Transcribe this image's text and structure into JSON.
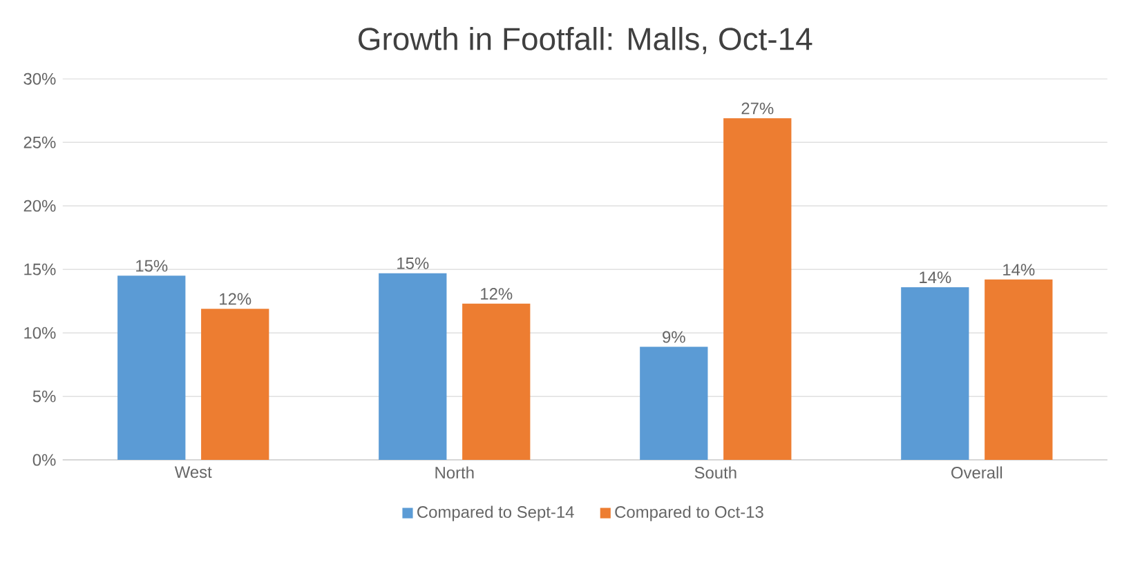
{
  "chart_data": {
    "type": "bar",
    "title": "Growth in Footfall: Malls, Oct-14",
    "categories": [
      "West",
      "North",
      "South",
      "Overall"
    ],
    "series": [
      {
        "name": "Compared to Sept-14",
        "color": "#5b9bd5",
        "values": [
          14.5,
          14.7,
          8.9,
          13.6
        ],
        "value_labels": [
          "15%",
          "15%",
          "9%",
          "14%"
        ]
      },
      {
        "name": "Compared to Oct-13",
        "color": "#ed7d31",
        "values": [
          11.9,
          12.3,
          26.9,
          14.2
        ],
        "value_labels": [
          "12%",
          "12%",
          "27%",
          "14%"
        ]
      }
    ],
    "ylim": [
      0,
      30
    ],
    "yticks": [
      {
        "value": 0,
        "label": "0%"
      },
      {
        "value": 5,
        "label": "5%"
      },
      {
        "value": 10,
        "label": "10%"
      },
      {
        "value": 15,
        "label": "15%"
      },
      {
        "value": 20,
        "label": "20%"
      },
      {
        "value": 25,
        "label": "25%"
      },
      {
        "value": 30,
        "label": "30%"
      }
    ],
    "grid": "y",
    "legend": "bottom"
  }
}
